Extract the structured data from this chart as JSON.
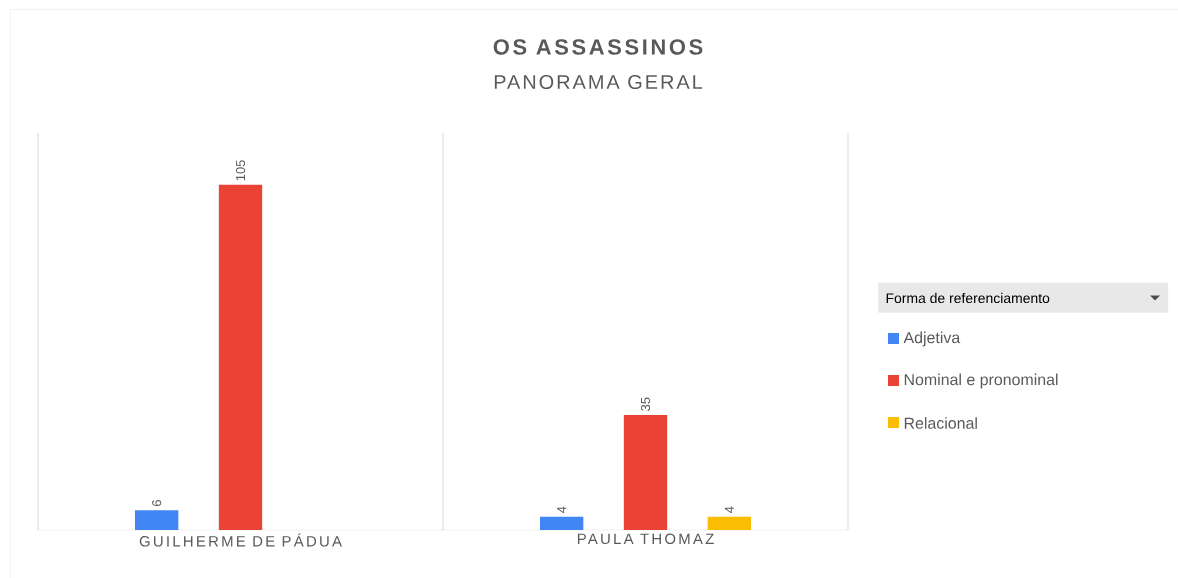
{
  "chart_data": {
    "type": "bar",
    "title": "OS ASSASSINOS",
    "subtitle": "PANORAMA GERAL",
    "legend_title": "Forma de referenciamento",
    "categories": [
      "GUILHERME DE PÁDUA",
      "PAULA THOMAZ"
    ],
    "series": [
      {
        "name": "Adjetiva",
        "color": "#4285f4",
        "values": [
          6,
          4
        ]
      },
      {
        "name": "Nominal e pronominal",
        "color": "#ea4335",
        "values": [
          105,
          35
        ]
      },
      {
        "name": "Relacional",
        "color": "#fbbc04",
        "values": [
          null,
          4
        ]
      }
    ],
    "data_labels": true,
    "grid": "x",
    "legend": "right"
  }
}
